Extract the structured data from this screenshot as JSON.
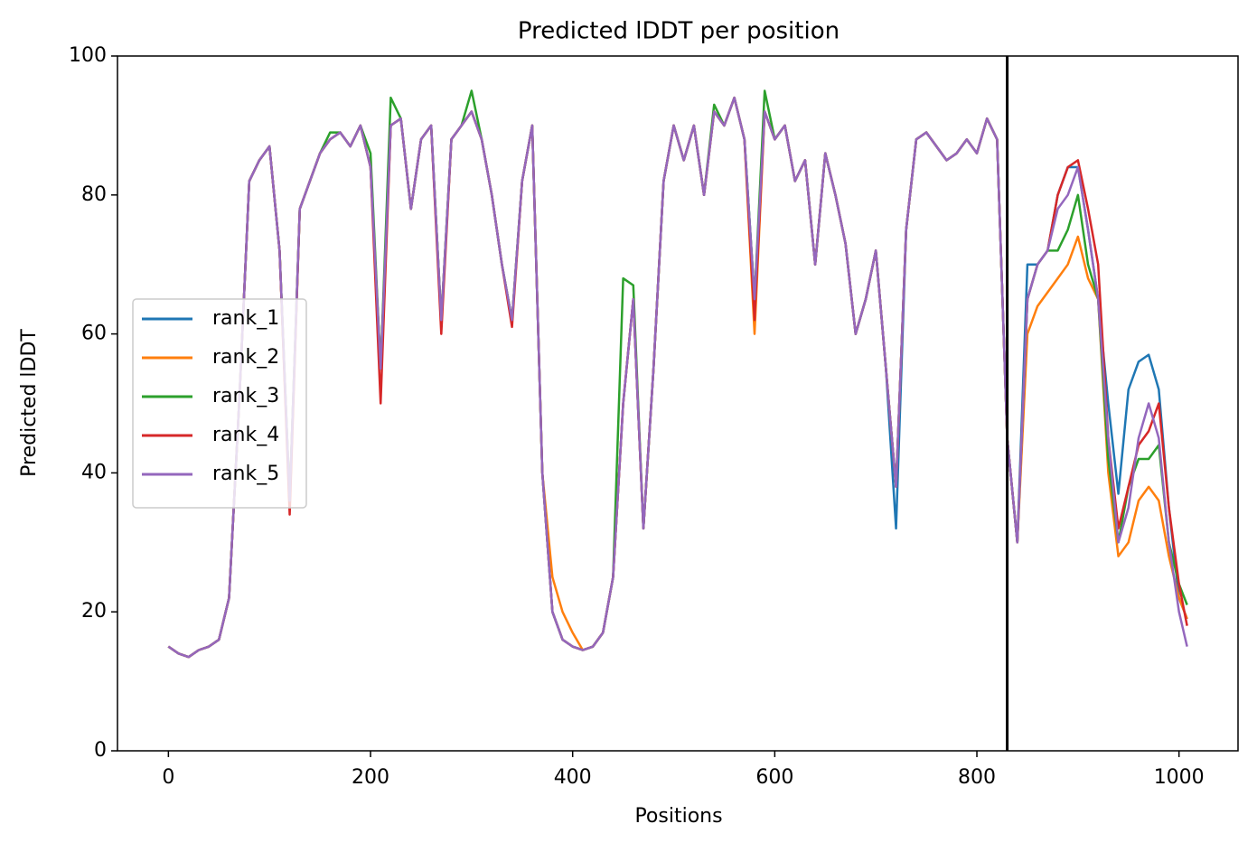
{
  "chart_data": {
    "type": "line",
    "title": "Predicted lDDT per position",
    "xlabel": "Positions",
    "ylabel": "Predicted lDDT",
    "x": [
      0,
      10,
      20,
      30,
      40,
      50,
      60,
      70,
      80,
      90,
      100,
      110,
      120,
      130,
      140,
      150,
      160,
      170,
      180,
      190,
      200,
      210,
      220,
      230,
      240,
      250,
      260,
      270,
      280,
      290,
      300,
      310,
      320,
      330,
      340,
      350,
      360,
      370,
      380,
      390,
      400,
      410,
      420,
      430,
      440,
      450,
      460,
      470,
      480,
      490,
      500,
      510,
      520,
      530,
      540,
      550,
      560,
      570,
      580,
      590,
      600,
      610,
      620,
      630,
      640,
      650,
      660,
      670,
      680,
      690,
      700,
      710,
      720,
      730,
      740,
      750,
      760,
      770,
      780,
      790,
      800,
      810,
      820,
      830,
      840,
      850,
      860,
      870,
      880,
      890,
      900,
      910,
      920,
      930,
      940,
      950,
      960,
      970,
      980,
      990,
      1000,
      1008
    ],
    "series": [
      {
        "name": "rank_1",
        "color": "#1f77b4",
        "values": [
          15,
          14,
          13.5,
          14.5,
          15,
          16,
          22,
          50,
          82,
          85,
          87,
          72,
          36,
          78,
          82,
          86,
          88,
          89,
          87,
          90,
          84,
          55,
          90,
          91,
          78,
          88,
          90,
          62,
          88,
          90,
          92,
          88,
          80,
          70,
          62,
          82,
          90,
          40,
          20,
          16,
          15,
          14.5,
          15,
          17,
          25,
          50,
          65,
          32,
          55,
          82,
          90,
          85,
          90,
          80,
          92,
          90,
          94,
          88,
          65,
          92,
          88,
          90,
          82,
          85,
          70,
          86,
          80,
          73,
          60,
          65,
          72,
          55,
          32,
          75,
          88,
          89,
          87,
          85,
          86,
          88,
          86,
          91,
          88,
          45,
          30,
          70,
          70,
          72,
          80,
          84,
          84,
          75,
          65,
          50,
          37,
          52,
          56,
          57,
          52,
          35,
          22,
          19
        ]
      },
      {
        "name": "rank_2",
        "color": "#ff7f0e",
        "values": [
          15,
          14,
          13.5,
          14.5,
          15,
          16,
          22,
          50,
          82,
          85,
          87,
          72,
          36,
          78,
          82,
          86,
          88,
          89,
          87,
          90,
          84,
          55,
          90,
          91,
          78,
          88,
          90,
          62,
          88,
          90,
          92,
          88,
          80,
          70,
          62,
          82,
          90,
          40,
          25,
          20,
          17,
          14.5,
          15,
          17,
          25,
          50,
          65,
          32,
          55,
          82,
          90,
          85,
          90,
          80,
          92,
          90,
          94,
          88,
          60,
          92,
          88,
          90,
          82,
          85,
          70,
          86,
          80,
          73,
          60,
          65,
          72,
          55,
          38,
          75,
          88,
          89,
          87,
          85,
          86,
          88,
          86,
          91,
          88,
          45,
          30,
          60,
          64,
          66,
          68,
          70,
          74,
          68,
          65,
          40,
          28,
          30,
          36,
          38,
          36,
          28,
          22,
          19
        ]
      },
      {
        "name": "rank_3",
        "color": "#2ca02c",
        "values": [
          15,
          14,
          13.5,
          14.5,
          15,
          16,
          22,
          50,
          82,
          85,
          87,
          72,
          36,
          78,
          82,
          86,
          89,
          89,
          87,
          90,
          86,
          55,
          94,
          91,
          78,
          88,
          90,
          62,
          88,
          90,
          95,
          88,
          80,
          70,
          62,
          82,
          90,
          40,
          20,
          16,
          15,
          14.5,
          15,
          17,
          25,
          68,
          67,
          32,
          55,
          82,
          90,
          85,
          90,
          80,
          93,
          90,
          94,
          88,
          65,
          95,
          88,
          90,
          82,
          85,
          70,
          86,
          80,
          73,
          60,
          65,
          72,
          55,
          38,
          75,
          88,
          89,
          87,
          85,
          86,
          88,
          86,
          91,
          88,
          45,
          30,
          65,
          70,
          72,
          72,
          75,
          80,
          70,
          65,
          42,
          30,
          38,
          42,
          42,
          44,
          30,
          24,
          21
        ]
      },
      {
        "name": "rank_4",
        "color": "#d62728",
        "values": [
          15,
          14,
          13.5,
          14.5,
          15,
          16,
          22,
          50,
          82,
          85,
          87,
          72,
          34,
          78,
          82,
          86,
          88,
          89,
          87,
          90,
          84,
          50,
          90,
          91,
          78,
          88,
          90,
          60,
          88,
          90,
          92,
          88,
          80,
          70,
          61,
          82,
          90,
          40,
          20,
          16,
          15,
          14.5,
          15,
          17,
          25,
          50,
          65,
          32,
          55,
          82,
          90,
          85,
          90,
          80,
          92,
          90,
          94,
          88,
          62,
          92,
          88,
          90,
          82,
          85,
          70,
          86,
          80,
          73,
          60,
          65,
          72,
          55,
          38,
          75,
          88,
          89,
          87,
          85,
          86,
          88,
          86,
          91,
          88,
          45,
          30,
          65,
          70,
          72,
          80,
          84,
          85,
          78,
          70,
          45,
          32,
          38,
          44,
          46,
          50,
          35,
          24,
          18
        ]
      },
      {
        "name": "rank_5",
        "color": "#9467bd",
        "values": [
          15,
          14,
          13.5,
          14.5,
          15,
          16,
          22,
          50,
          82,
          85,
          87,
          72,
          36,
          78,
          82,
          86,
          88,
          89,
          87,
          90,
          84,
          55,
          90,
          91,
          78,
          88,
          90,
          62,
          88,
          90,
          92,
          88,
          80,
          70,
          62,
          82,
          90,
          40,
          20,
          16,
          15,
          14.5,
          15,
          17,
          25,
          50,
          65,
          32,
          55,
          82,
          90,
          85,
          90,
          80,
          92,
          90,
          94,
          88,
          65,
          92,
          88,
          90,
          82,
          85,
          70,
          86,
          80,
          73,
          60,
          65,
          72,
          55,
          38,
          75,
          88,
          89,
          87,
          85,
          86,
          88,
          86,
          91,
          88,
          45,
          30,
          65,
          70,
          72,
          78,
          80,
          84,
          75,
          65,
          45,
          30,
          35,
          45,
          50,
          45,
          30,
          20,
          15
        ]
      }
    ],
    "vlines": [
      830
    ],
    "xlim": [
      -50.4,
      1058.4
    ],
    "xticks": [
      0,
      200,
      400,
      600,
      800,
      1000
    ],
    "ylim": [
      0,
      100
    ],
    "yticks": [
      0,
      20,
      40,
      60,
      80,
      100
    ],
    "legend": "center left"
  }
}
